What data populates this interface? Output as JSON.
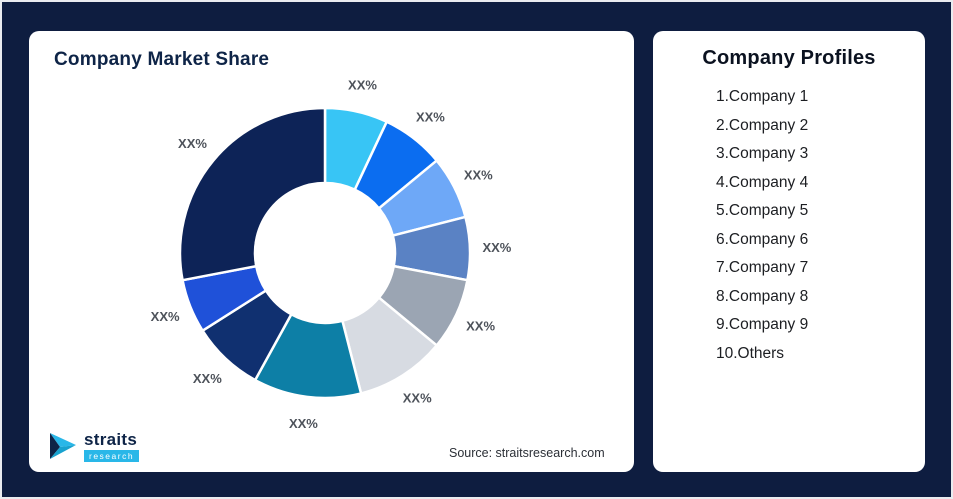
{
  "page": {
    "background": "#0e1d40"
  },
  "left_card": {
    "title": "Company Market Share",
    "source": "Source: straitsresearch.com",
    "logo": {
      "name": "straits",
      "subname": "research"
    }
  },
  "right_card": {
    "title": "Company Profiles",
    "items": [
      "1.Company 1",
      "2.Company 2",
      "3.Company 3",
      "4.Company 4",
      "5.Company 5",
      "6.Company 6",
      "7.Company 7",
      "8.Company 8",
      "9.Company 9",
      "10.Others"
    ]
  },
  "chart_data": {
    "type": "pie",
    "variant": "donut",
    "title": "Company Market Share",
    "labels": [
      "XX%",
      "XX%",
      "XX%",
      "XX%",
      "XX%",
      "XX%",
      "XX%",
      "XX%",
      "XX%",
      "XX%"
    ],
    "values": [
      7,
      7,
      7,
      7,
      8,
      10,
      12,
      8,
      6,
      28
    ],
    "colors": [
      "#38c5f5",
      "#0b6df0",
      "#6ea8f7",
      "#5a82c4",
      "#9ba5b3",
      "#d7dbe2",
      "#0d7fa6",
      "#103070",
      "#1f51d9",
      "#0d2357"
    ],
    "note": "All segment data labels show placeholder text 'XX%'; values are angular-size estimates in percent read from the rendered donut.",
    "legend": "none",
    "start_angle_deg": 0,
    "direction": "clockwise",
    "inner_radius_ratio": 0.48
  }
}
